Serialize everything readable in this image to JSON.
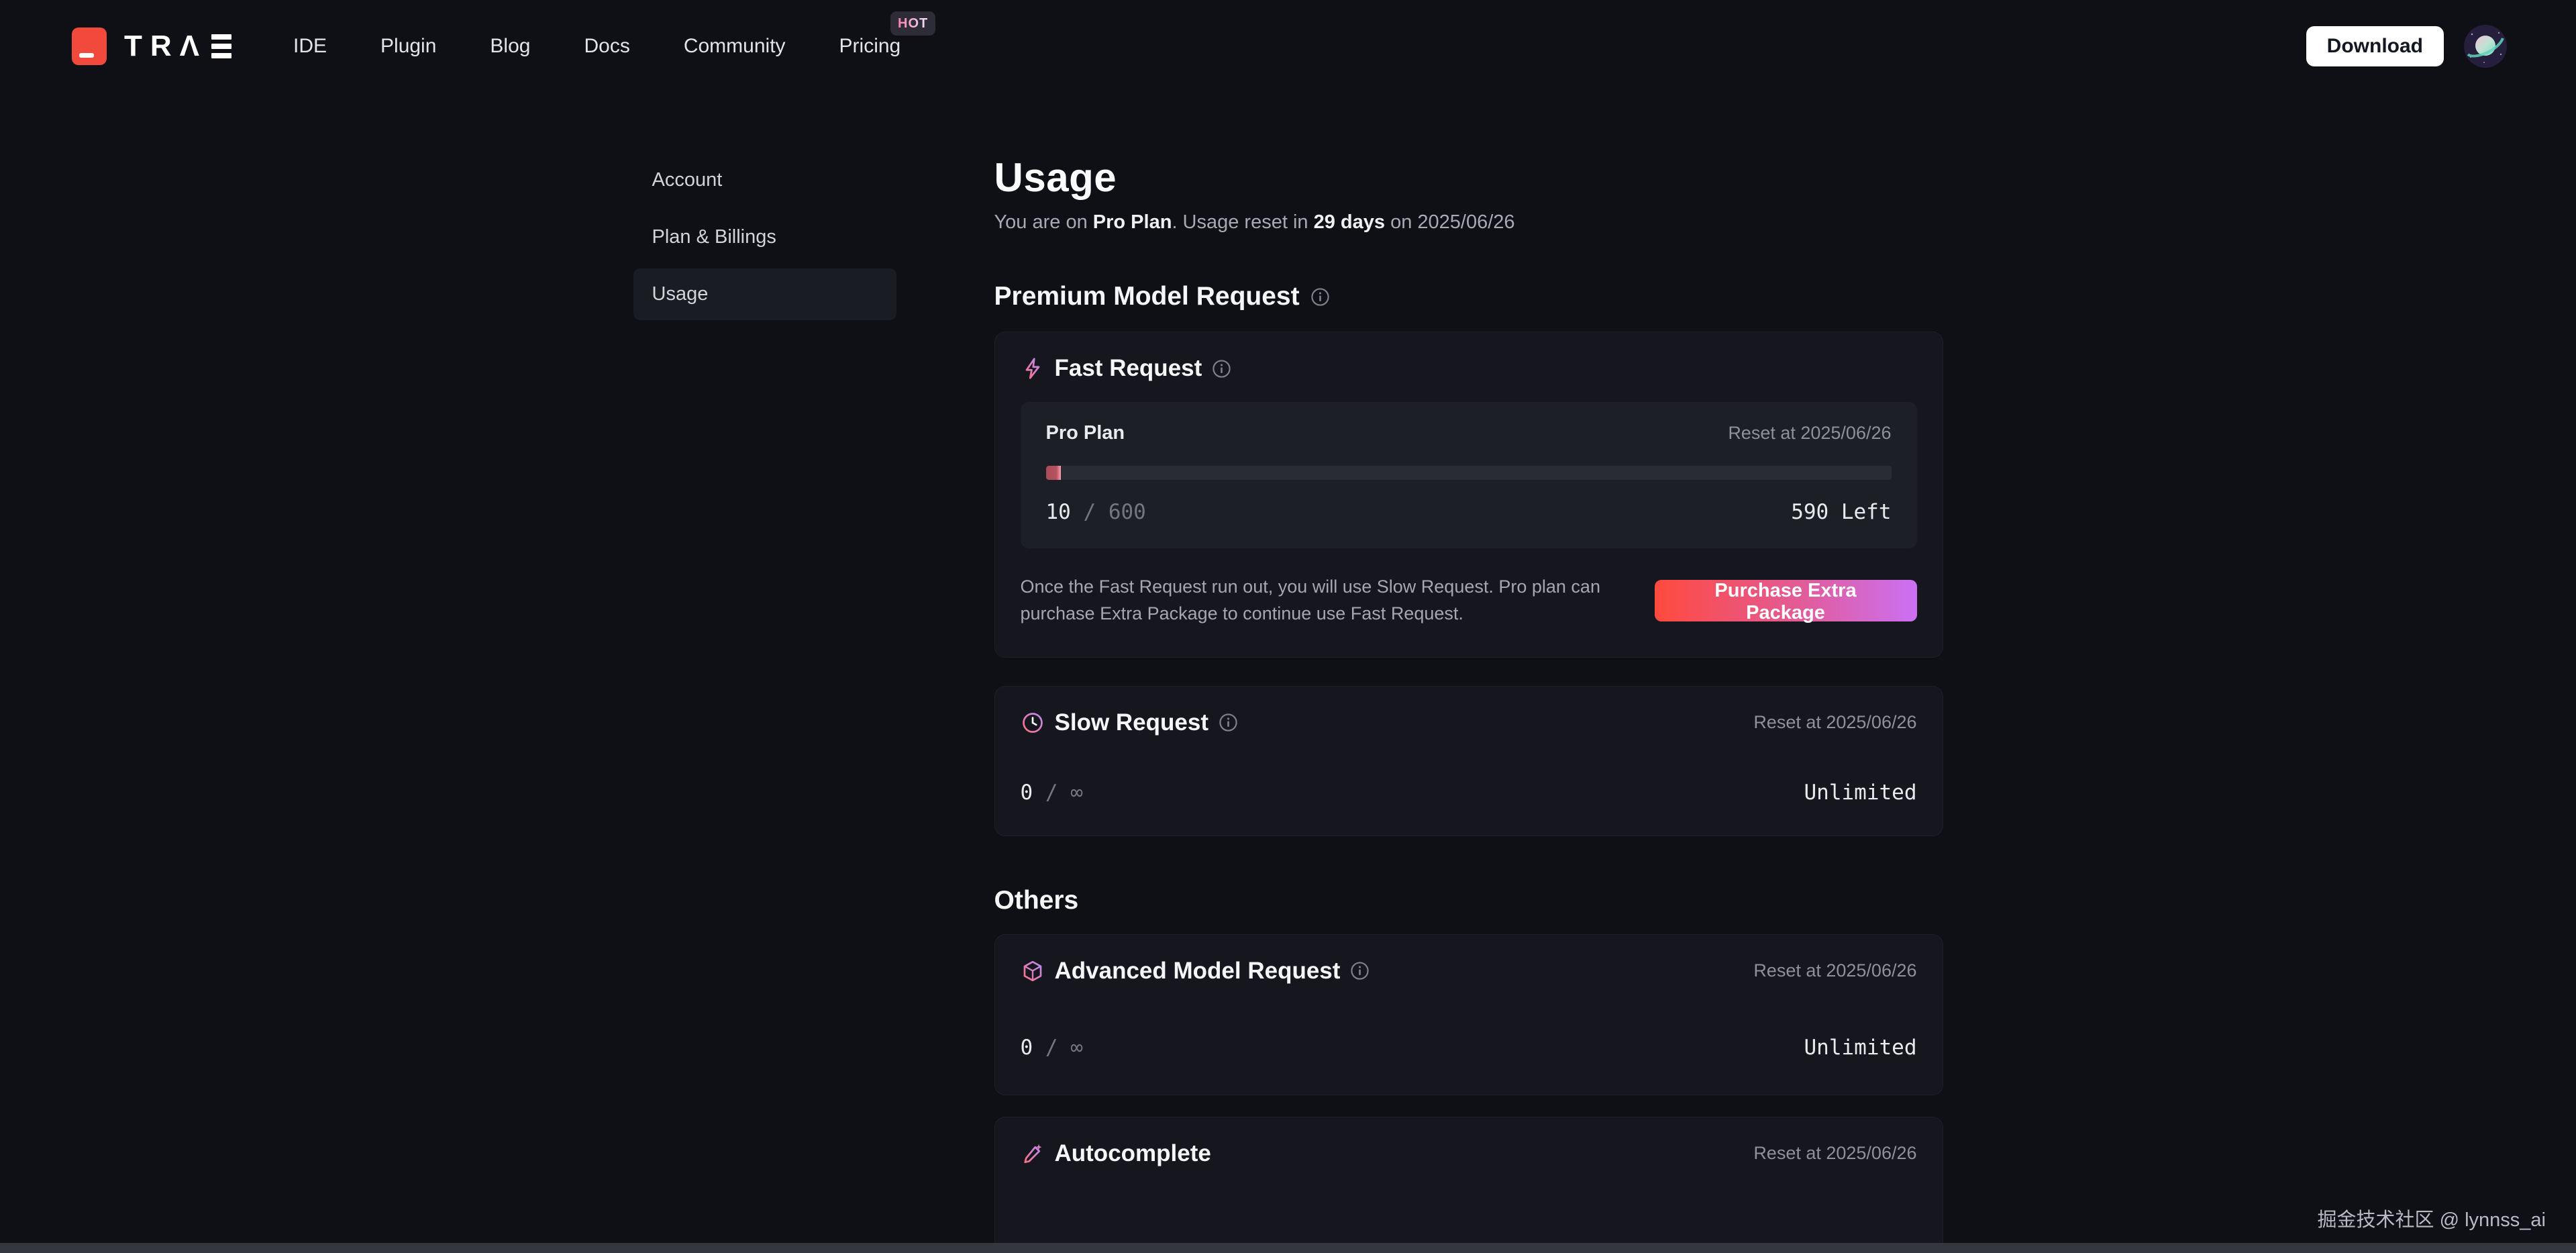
{
  "navbar": {
    "logo_text": "TRΛ",
    "items": [
      {
        "label": "IDE"
      },
      {
        "label": "Plugin"
      },
      {
        "label": "Blog"
      },
      {
        "label": "Docs"
      },
      {
        "label": "Community"
      },
      {
        "label": "Pricing",
        "badge": "HOT"
      }
    ],
    "download_label": "Download"
  },
  "sidebar": {
    "items": [
      {
        "label": "Account"
      },
      {
        "label": "Plan & Billings"
      },
      {
        "label": "Usage"
      }
    ]
  },
  "page": {
    "title": "Usage",
    "subtitle": {
      "prefix": "You are on ",
      "plan": "Pro Plan",
      "middle": ". Usage reset in ",
      "days": "29 days",
      "suffix": " on 2025/06/26"
    }
  },
  "premium_section": {
    "title": "Premium Model Request"
  },
  "fast": {
    "title": "Fast Request",
    "plan": "Pro Plan",
    "reset": "Reset at 2025/06/26",
    "used": "10",
    "separator": "/",
    "total": "600",
    "left": "590 Left",
    "progress_pct": 1.8,
    "note": "Once the Fast Request run out, you will use Slow Request. Pro plan can purchase Extra Package to continue use Fast Request.",
    "button": "Purchase Extra Package"
  },
  "slow": {
    "title": "Slow Request",
    "reset": "Reset at 2025/06/26",
    "used": "0",
    "separator": "/",
    "total": "∞",
    "right": "Unlimited"
  },
  "others_section": {
    "title": "Others"
  },
  "advanced": {
    "title": "Advanced Model Request",
    "reset": "Reset at 2025/06/26",
    "used": "0",
    "separator": "/",
    "total": "∞",
    "right": "Unlimited"
  },
  "autocomplete": {
    "title": "Autocomplete",
    "reset": "Reset at 2025/06/26"
  },
  "watermark": "掘金技术社区 @ lynnss_ai",
  "colors": {
    "brand_red": "#f2493d",
    "progress_fill": "#b5525f",
    "progress_edge": "#ff9eb3",
    "button_gradient_start": "#ff4a3e",
    "button_gradient_end": "#cb70f4",
    "background": "#0f1016",
    "card_background": "#16171e"
  },
  "icons": {
    "fast": "lightning-bolt",
    "slow": "clock",
    "advanced": "cube",
    "autocomplete": "pen-sparkle",
    "info": "circled-i",
    "avatar": "planet-illustration"
  }
}
